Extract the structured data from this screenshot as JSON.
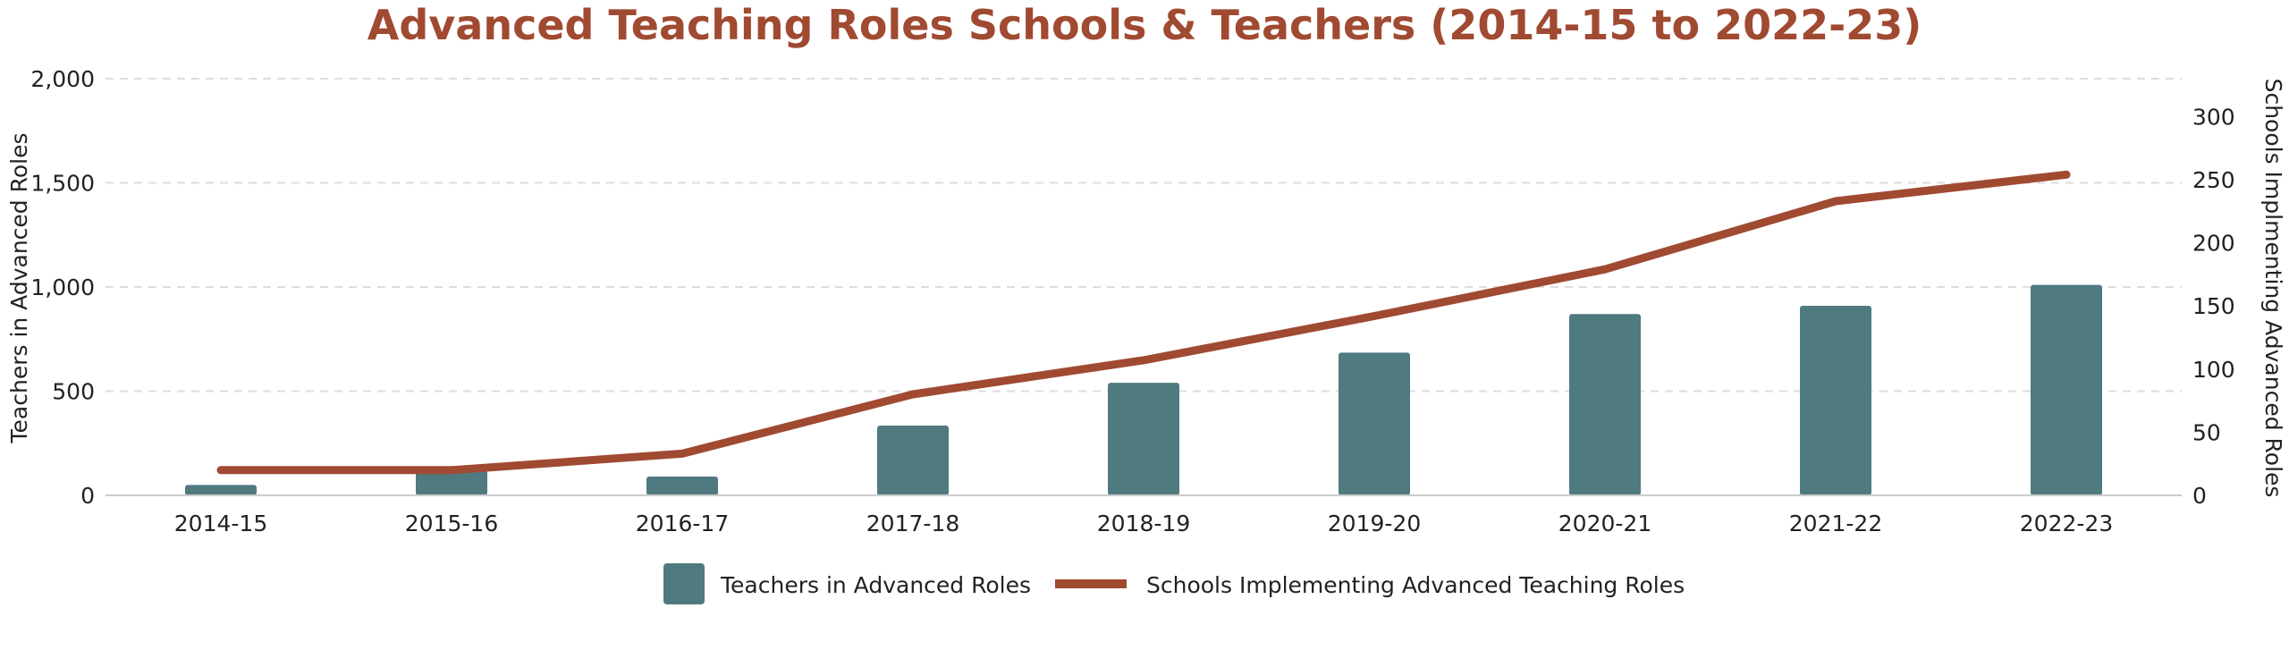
{
  "chart_data": {
    "type": "bar",
    "title": "Advanced Teaching Roles Schools & Teachers (2014-15 to 2022-23)",
    "categories": [
      "2014-15",
      "2015-16",
      "2016-17",
      "2017-18",
      "2018-19",
      "2019-20",
      "2020-21",
      "2021-22",
      "2022-23"
    ],
    "series": [
      {
        "name": "Teachers in Advanced Roles",
        "type": "bar",
        "axis": "left",
        "color": "#4f7a7f",
        "values": [
          50,
          120,
          90,
          335,
          540,
          685,
          870,
          910,
          1010
        ]
      },
      {
        "name": "Schools Implementing Advanced Teaching Roles",
        "type": "line",
        "axis": "right",
        "color": "#a04a32",
        "values": [
          20,
          20,
          33,
          80,
          107,
          142,
          179,
          233,
          254
        ]
      }
    ],
    "ylabel": "Teachers in Advanced Roles",
    "ylabel_right": "Schools Implmenting Advanced Roles",
    "ylim": [
      0,
      2000
    ],
    "ylim_right": [
      0,
      330
    ],
    "yticks": [
      "0",
      "500",
      "1,000",
      "1,500",
      "2,000"
    ],
    "yticks_right": [
      "0",
      "50",
      "100",
      "150",
      "200",
      "250",
      "300"
    ],
    "grid": true,
    "legend_position": "bottom"
  }
}
